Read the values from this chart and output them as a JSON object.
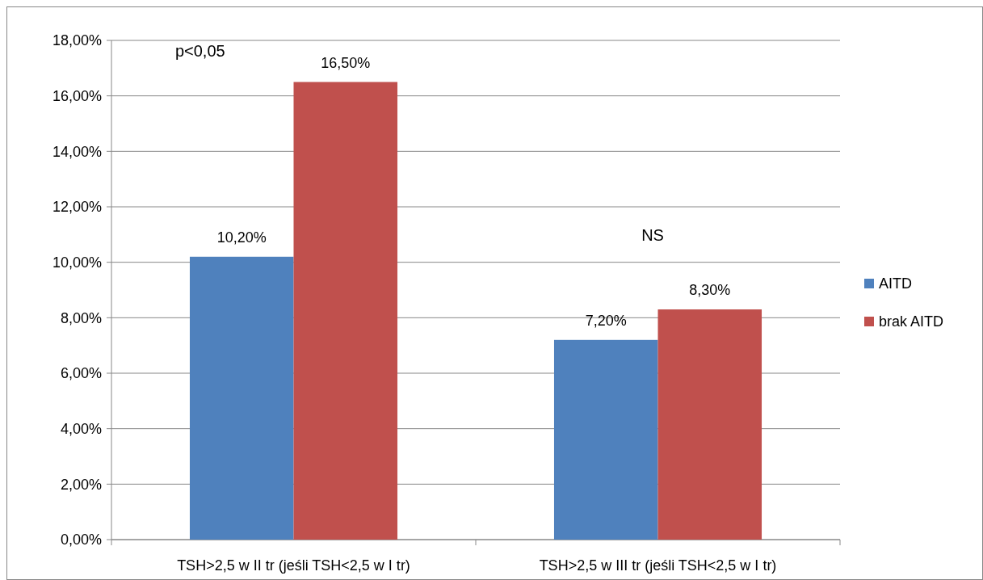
{
  "chart_data": {
    "type": "bar",
    "categories": [
      "TSH>2,5 w II tr (jeśli TSH<2,5 w I tr)",
      "TSH>2,5 w III tr (jeśli TSH<2,5 w I tr)"
    ],
    "series": [
      {
        "name": "AITD",
        "color": "#4f81bd",
        "values": [
          10.2,
          7.2
        ],
        "value_labels": [
          "10,20%",
          "7,20%"
        ]
      },
      {
        "name": "brak AITD",
        "color": "#c0504d",
        "values": [
          16.5,
          8.3
        ],
        "value_labels": [
          "16,50%",
          "8,30%"
        ]
      }
    ],
    "ylim": [
      0,
      18
    ],
    "yticks": [
      {
        "value": 0,
        "label": "0,00%"
      },
      {
        "value": 2,
        "label": "2,00%"
      },
      {
        "value": 4,
        "label": "4,00%"
      },
      {
        "value": 6,
        "label": "6,00%"
      },
      {
        "value": 8,
        "label": "8,00%"
      },
      {
        "value": 10,
        "label": "10,00%"
      },
      {
        "value": 12,
        "label": "12,00%"
      },
      {
        "value": 14,
        "label": "14,00%"
      },
      {
        "value": 16,
        "label": "16,00%"
      },
      {
        "value": 18,
        "label": "18,00%"
      }
    ],
    "grid": "y",
    "legend": "right",
    "annotations": [
      "p<0,05",
      "NS"
    ]
  }
}
